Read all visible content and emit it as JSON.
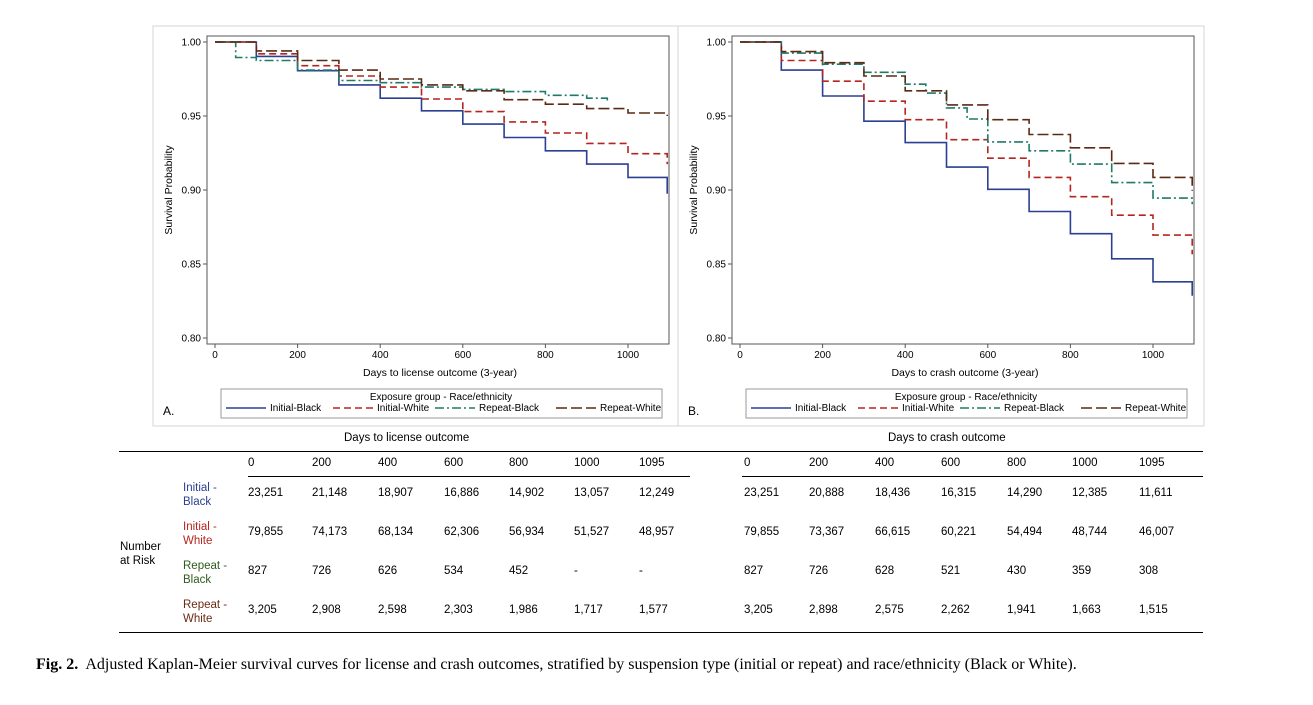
{
  "colors": {
    "initial_black": "#2b3f93",
    "initial_white": "#b5251f",
    "repeat_black": "#1f7a67",
    "repeat_white": "#5a2a14"
  },
  "legend": {
    "title": "Exposure group - Race/ethnicity",
    "entries": [
      "Initial-Black",
      "Initial-White",
      "Repeat-Black",
      "Repeat-White"
    ]
  },
  "chart_data": [
    {
      "type": "line",
      "panel": "A.",
      "xlabel": "Days to license outcome (3-year)",
      "ylabel": "Survival Probability",
      "xlim": [
        0,
        1095
      ],
      "ylim": [
        0.8,
        1.0
      ],
      "x_ticks": [
        "0",
        "200",
        "400",
        "600",
        "800",
        "1000"
      ],
      "y_ticks": [
        "0.80",
        "0.85",
        "0.90",
        "0.95",
        "1.00"
      ],
      "legend_placement": "bottom",
      "series": [
        {
          "name": "Initial-Black",
          "x": [
            0,
            100,
            200,
            300,
            400,
            500,
            600,
            700,
            800,
            900,
            1000,
            1095
          ],
          "y": [
            1.0,
            0.9903,
            0.9806,
            0.971,
            0.962,
            0.9535,
            0.9445,
            0.9355,
            0.9265,
            0.9175,
            0.9085,
            0.8975
          ]
        },
        {
          "name": "Initial-White",
          "x": [
            0,
            100,
            200,
            300,
            400,
            500,
            600,
            700,
            800,
            900,
            1000,
            1095
          ],
          "y": [
            1.0,
            0.992,
            0.984,
            0.977,
            0.9695,
            0.9615,
            0.953,
            0.946,
            0.9385,
            0.9315,
            0.9245,
            0.9175
          ]
        },
        {
          "name": "Repeat-Black",
          "x": [
            0,
            50,
            100,
            200,
            300,
            400,
            500,
            600,
            700,
            800,
            900,
            950
          ],
          "y": [
            1.0,
            0.9895,
            0.9875,
            0.981,
            0.974,
            0.9725,
            0.9695,
            0.968,
            0.9665,
            0.964,
            0.962,
            0.9605
          ]
        },
        {
          "name": "Repeat-White",
          "x": [
            0,
            100,
            200,
            300,
            400,
            500,
            600,
            700,
            800,
            900,
            1000,
            1095
          ],
          "y": [
            1.0,
            0.994,
            0.9875,
            0.981,
            0.975,
            0.971,
            0.967,
            0.961,
            0.958,
            0.955,
            0.952,
            0.95
          ]
        }
      ]
    },
    {
      "type": "line",
      "panel": "B.",
      "xlabel": "Days to crash outcome (3-year)",
      "ylabel": "Survival Probability",
      "xlim": [
        0,
        1095
      ],
      "ylim": [
        0.8,
        1.0
      ],
      "x_ticks": [
        "0",
        "200",
        "400",
        "600",
        "800",
        "1000"
      ],
      "y_ticks": [
        "0.80",
        "0.85",
        "0.90",
        "0.95",
        "1.00"
      ],
      "legend_placement": "bottom",
      "series": [
        {
          "name": "Initial-Black",
          "x": [
            0,
            100,
            200,
            300,
            400,
            500,
            600,
            700,
            800,
            900,
            1000,
            1095
          ],
          "y": [
            1.0,
            0.981,
            0.9635,
            0.9465,
            0.932,
            0.9155,
            0.9005,
            0.8855,
            0.8705,
            0.8535,
            0.838,
            0.8285
          ]
        },
        {
          "name": "Initial-White",
          "x": [
            0,
            100,
            200,
            300,
            400,
            500,
            600,
            700,
            800,
            900,
            1000,
            1095
          ],
          "y": [
            1.0,
            0.9875,
            0.9735,
            0.96,
            0.9475,
            0.934,
            0.9215,
            0.9085,
            0.8955,
            0.883,
            0.8695,
            0.8565
          ]
        },
        {
          "name": "Repeat-Black",
          "x": [
            0,
            100,
            200,
            300,
            400,
            450,
            500,
            550,
            600,
            700,
            800,
            900,
            1000,
            1095
          ],
          "y": [
            1.0,
            0.9925,
            0.985,
            0.9795,
            0.9715,
            0.9655,
            0.9555,
            0.948,
            0.9325,
            0.9265,
            0.9175,
            0.905,
            0.8945,
            0.8905
          ]
        },
        {
          "name": "Repeat-White",
          "x": [
            0,
            100,
            200,
            300,
            400,
            500,
            600,
            700,
            800,
            900,
            1000,
            1095
          ],
          "y": [
            1.0,
            0.9935,
            0.986,
            0.977,
            0.967,
            0.9575,
            0.9475,
            0.9375,
            0.9285,
            0.918,
            0.9085,
            0.8995
          ]
        }
      ]
    }
  ],
  "risk_table": {
    "left_title": "Days to license outcome",
    "right_title": "Days to crash outcome",
    "row_label": [
      "Number",
      "at Risk"
    ],
    "days": [
      "0",
      "200",
      "400",
      "600",
      "800",
      "1000",
      "1095"
    ],
    "groups": [
      {
        "name": [
          "Initial -",
          "Black"
        ],
        "color": "#2b3f93",
        "license": [
          "23,251",
          "21,148",
          "18,907",
          "16,886",
          "14,902",
          "13,057",
          "12,249"
        ],
        "crash": [
          "23,251",
          "20,888",
          "18,436",
          "16,315",
          "14,290",
          "12,385",
          "11,611"
        ]
      },
      {
        "name": [
          "Initial -",
          "White"
        ],
        "color": "#b5251f",
        "license": [
          "79,855",
          "74,173",
          "68,134",
          "62,306",
          "56,934",
          "51,527",
          "48,957"
        ],
        "crash": [
          "79,855",
          "73,367",
          "66,615",
          "60,221",
          "54,494",
          "48,744",
          "46,007"
        ]
      },
      {
        "name": [
          "Repeat -",
          "Black"
        ],
        "color": "#2f5a1e",
        "license": [
          "827",
          "726",
          "626",
          "534",
          "452",
          "-",
          "-"
        ],
        "crash": [
          "827",
          "726",
          "628",
          "521",
          "430",
          "359",
          "308"
        ]
      },
      {
        "name": [
          "Repeat -",
          "White"
        ],
        "color": "#6b2a14",
        "license": [
          "3,205",
          "2,908",
          "2,598",
          "2,303",
          "1,986",
          "1,717",
          "1,577"
        ],
        "crash": [
          "3,205",
          "2,898",
          "2,575",
          "2,262",
          "1,941",
          "1,663",
          "1,515"
        ]
      }
    ]
  },
  "caption": {
    "label": "Fig. 2.",
    "text": "Adjusted Kaplan-Meier survival curves for license and crash outcomes, stratified by suspension type (initial or repeat) and race/ethnicity (Black or White)."
  }
}
